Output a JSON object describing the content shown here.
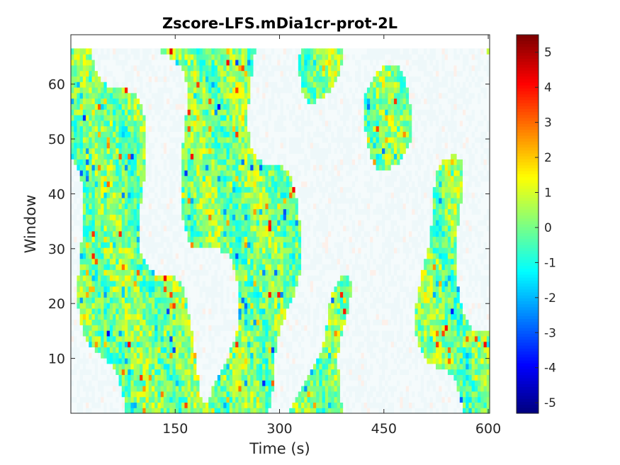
{
  "chart_data": {
    "type": "heatmap",
    "title": "Zscore-LFS.mDia1cr-prot-2L",
    "xlabel": "Time (s)",
    "ylabel": "Window",
    "xlim": [
      0,
      602
    ],
    "ylim": [
      0,
      69
    ],
    "data_extent": {
      "x": [
        0,
        602
      ],
      "y": [
        0,
        66.5
      ]
    },
    "xticks": [
      150,
      300,
      450,
      600
    ],
    "yticks": [
      10,
      20,
      30,
      40,
      50,
      60
    ],
    "colorbar": {
      "colormap": "jet",
      "clim": [
        -5.3,
        5.5
      ],
      "ticks": [
        -5,
        -4,
        -3,
        -2,
        -1,
        0,
        1,
        2,
        3,
        4,
        5
      ]
    },
    "background_color": "#ffffff"
  }
}
